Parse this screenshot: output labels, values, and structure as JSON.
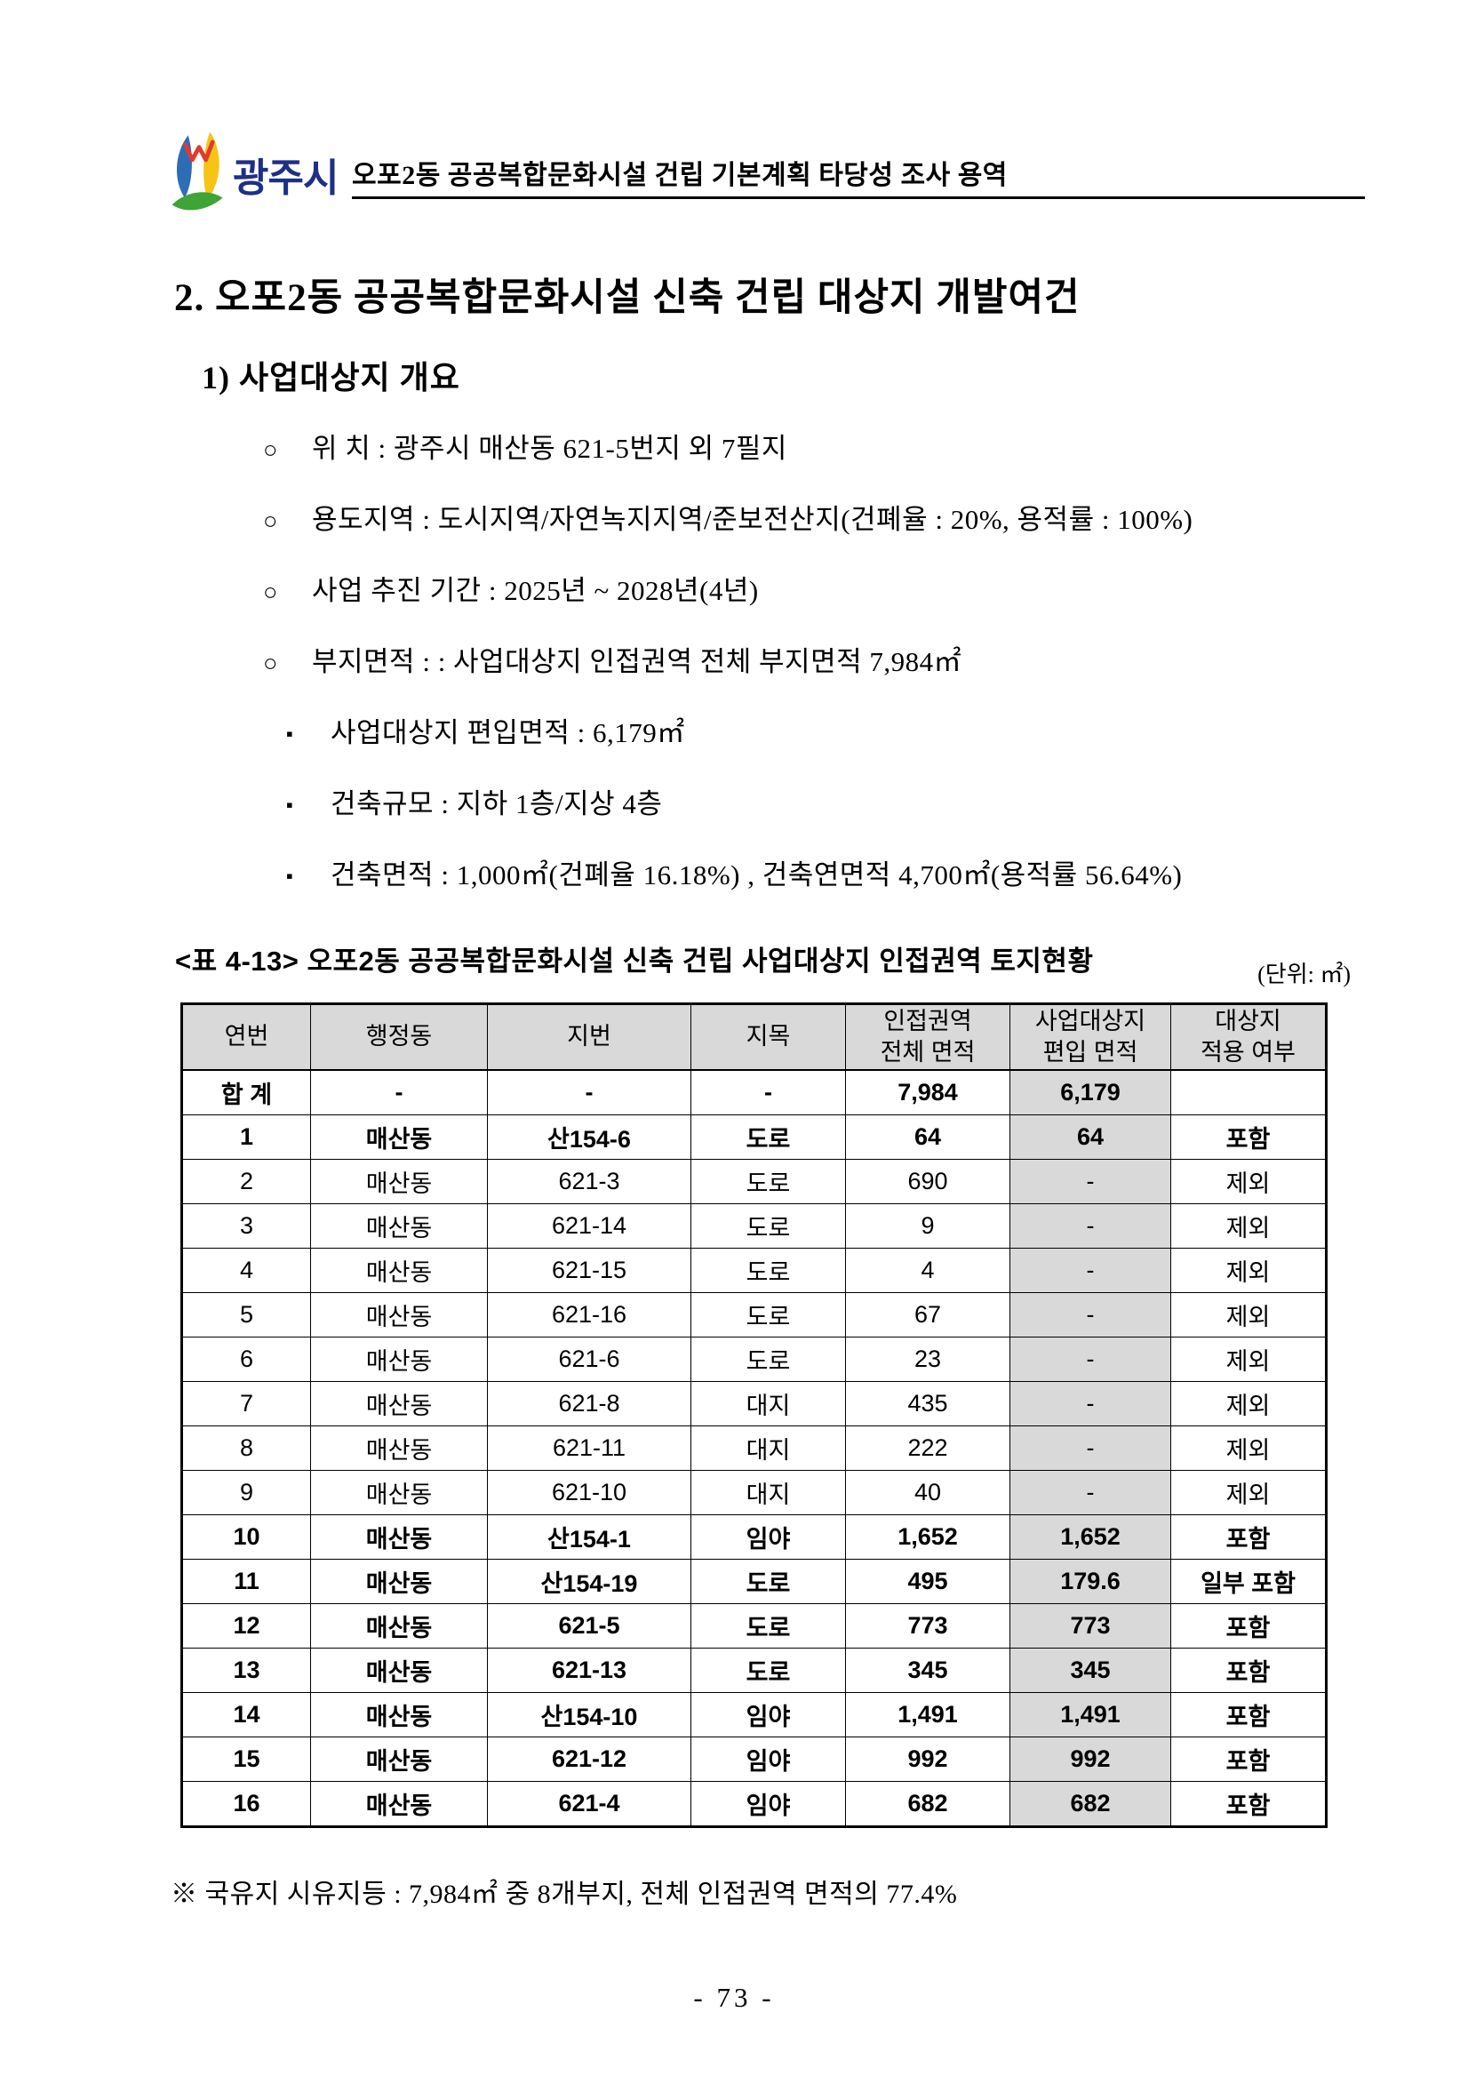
{
  "header": {
    "logo_text": "광주시",
    "title": "오포2동 공공복합문화시설 건립 기본계획 타당성 조사 용역",
    "logo_colors": {
      "blue": "#2e6db4",
      "yellow": "#f6c414",
      "green": "#3fa435",
      "red": "#e03a2f",
      "text": "#1d2f87"
    }
  },
  "section_title": "2. 오포2동 공공복합문화시설 신축 건립 대상지 개발여건",
  "subsection_title": "1) 사업대상지 개요",
  "bullets": [
    {
      "marker": "○",
      "level": 1,
      "text": "위 치 : 광주시 매산동 621-5번지 외 7필지"
    },
    {
      "marker": "○",
      "level": 1,
      "text": "용도지역 : 도시지역/자연녹지지역/준보전산지(건폐율 : 20%, 용적률 : 100%)"
    },
    {
      "marker": "○",
      "level": 1,
      "text": "사업 추진 기간 : 2025년 ~ 2028년(4년)"
    },
    {
      "marker": "○",
      "level": 1,
      "text": "부지면적 : : 사업대상지 인접권역 전체 부지면적 7,984㎡"
    },
    {
      "marker": "▪",
      "level": 2,
      "text": "사업대상지 편입면적 : 6,179㎡"
    },
    {
      "marker": "▪",
      "level": 2,
      "text": "건축규모 : 지하 1층/지상 4층"
    },
    {
      "marker": "▪",
      "level": 2,
      "text": "건축면적 : 1,000㎡(건폐율 16.18%) , 건축연면적 4,700㎡(용적률 56.64%)"
    }
  ],
  "table": {
    "caption": "<표 4-13> 오포2동 공공복합문화시설 신축 건립 사업대상지 인접권역 토지현황",
    "unit_label": "(단위: ㎡)",
    "columns": [
      "연번",
      "행정동",
      "지번",
      "지목",
      "인접권역\n전체 면적",
      "사업대상지\n편입 면적",
      "대상지\n적용 여부"
    ],
    "shaded_column_index": 5,
    "shade_color": "#d9d9d9",
    "total_row": {
      "cells": [
        "합 계",
        "-",
        "-",
        "-",
        "7,984",
        "6,179",
        ""
      ],
      "emphasis": true
    },
    "rows": [
      {
        "cells": [
          "1",
          "매산동",
          "산154-6",
          "도로",
          "64",
          "64",
          "포함"
        ],
        "emphasis": true
      },
      {
        "cells": [
          "2",
          "매산동",
          "621-3",
          "도로",
          "690",
          "-",
          "제외"
        ],
        "emphasis": false
      },
      {
        "cells": [
          "3",
          "매산동",
          "621-14",
          "도로",
          "9",
          "-",
          "제외"
        ],
        "emphasis": false
      },
      {
        "cells": [
          "4",
          "매산동",
          "621-15",
          "도로",
          "4",
          "-",
          "제외"
        ],
        "emphasis": false
      },
      {
        "cells": [
          "5",
          "매산동",
          "621-16",
          "도로",
          "67",
          "-",
          "제외"
        ],
        "emphasis": false
      },
      {
        "cells": [
          "6",
          "매산동",
          "621-6",
          "도로",
          "23",
          "-",
          "제외"
        ],
        "emphasis": false
      },
      {
        "cells": [
          "7",
          "매산동",
          "621-8",
          "대지",
          "435",
          "-",
          "제외"
        ],
        "emphasis": false
      },
      {
        "cells": [
          "8",
          "매산동",
          "621-11",
          "대지",
          "222",
          "-",
          "제외"
        ],
        "emphasis": false
      },
      {
        "cells": [
          "9",
          "매산동",
          "621-10",
          "대지",
          "40",
          "-",
          "제외"
        ],
        "emphasis": false
      },
      {
        "cells": [
          "10",
          "매산동",
          "산154-1",
          "임야",
          "1,652",
          "1,652",
          "포함"
        ],
        "emphasis": true
      },
      {
        "cells": [
          "11",
          "매산동",
          "산154-19",
          "도로",
          "495",
          "179.6",
          "일부 포함"
        ],
        "emphasis": true
      },
      {
        "cells": [
          "12",
          "매산동",
          "621-5",
          "도로",
          "773",
          "773",
          "포함"
        ],
        "emphasis": true
      },
      {
        "cells": [
          "13",
          "매산동",
          "621-13",
          "도로",
          "345",
          "345",
          "포함"
        ],
        "emphasis": true
      },
      {
        "cells": [
          "14",
          "매산동",
          "산154-10",
          "임야",
          "1,491",
          "1,491",
          "포함"
        ],
        "emphasis": true
      },
      {
        "cells": [
          "15",
          "매산동",
          "621-12",
          "임야",
          "992",
          "992",
          "포함"
        ],
        "emphasis": true
      },
      {
        "cells": [
          "16",
          "매산동",
          "621-4",
          "임야",
          "682",
          "682",
          "포함"
        ],
        "emphasis": true
      }
    ]
  },
  "footnote": "※ 국유지 시유지등 : 7,984㎡  중 8개부지, 전체 인접권역 면적의 77.4%",
  "page_number": "- 73 -"
}
